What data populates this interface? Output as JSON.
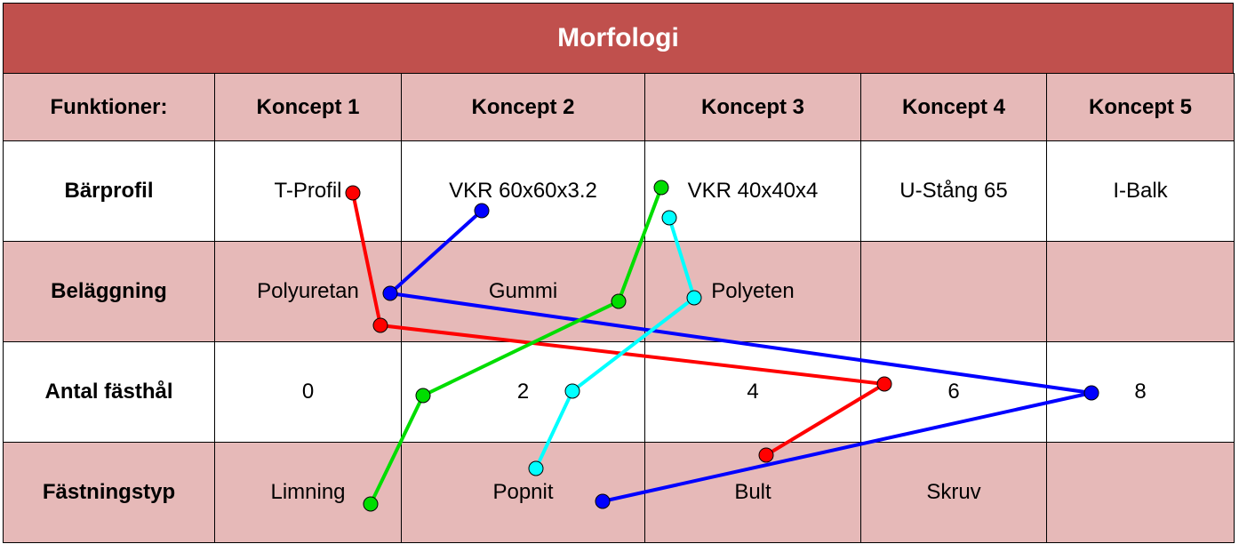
{
  "title": "Morfologi",
  "header": [
    "Funktioner:",
    "Koncept 1",
    "Koncept 2",
    "Koncept 3",
    "Koncept 4",
    "Koncept 5"
  ],
  "rows": [
    {
      "function": "Bärprofil",
      "cells": [
        "T-Profil",
        "VKR 60x60x3.2",
        "VKR 40x40x4",
        "U-Stång 65",
        "I-Balk"
      ]
    },
    {
      "function": "Beläggning",
      "cells": [
        "Polyuretan",
        "Gummi",
        "Polyeten",
        "",
        ""
      ]
    },
    {
      "function": "Antal fästhål",
      "cells": [
        "0",
        "2",
        "4",
        "6",
        "8"
      ]
    },
    {
      "function": "Fästningstyp",
      "cells": [
        "Limning",
        "Popnit",
        "Bult",
        "Skruv",
        ""
      ]
    }
  ],
  "colors": {
    "title_bg": "#c0504d",
    "band_pink": "#e6b9b8",
    "red": "#ff0000",
    "blue": "#0000ff",
    "green": "#00dd00",
    "cyan": "#00ffff"
  },
  "concept_paths": [
    {
      "color": "red",
      "selections": [
        "T-Profil",
        "Polyuretan",
        "6",
        "Bult"
      ]
    },
    {
      "color": "blue",
      "selections": [
        "VKR 60x60x3.2",
        "Polyuretan",
        "8",
        "Popnit"
      ]
    },
    {
      "color": "green",
      "selections": [
        "VKR 40x40x4",
        "Gummi",
        "2",
        "Limning"
      ]
    },
    {
      "color": "cyan",
      "selections": [
        "VKR 40x40x4",
        "Polyeten",
        "2",
        "Popnit"
      ]
    }
  ]
}
